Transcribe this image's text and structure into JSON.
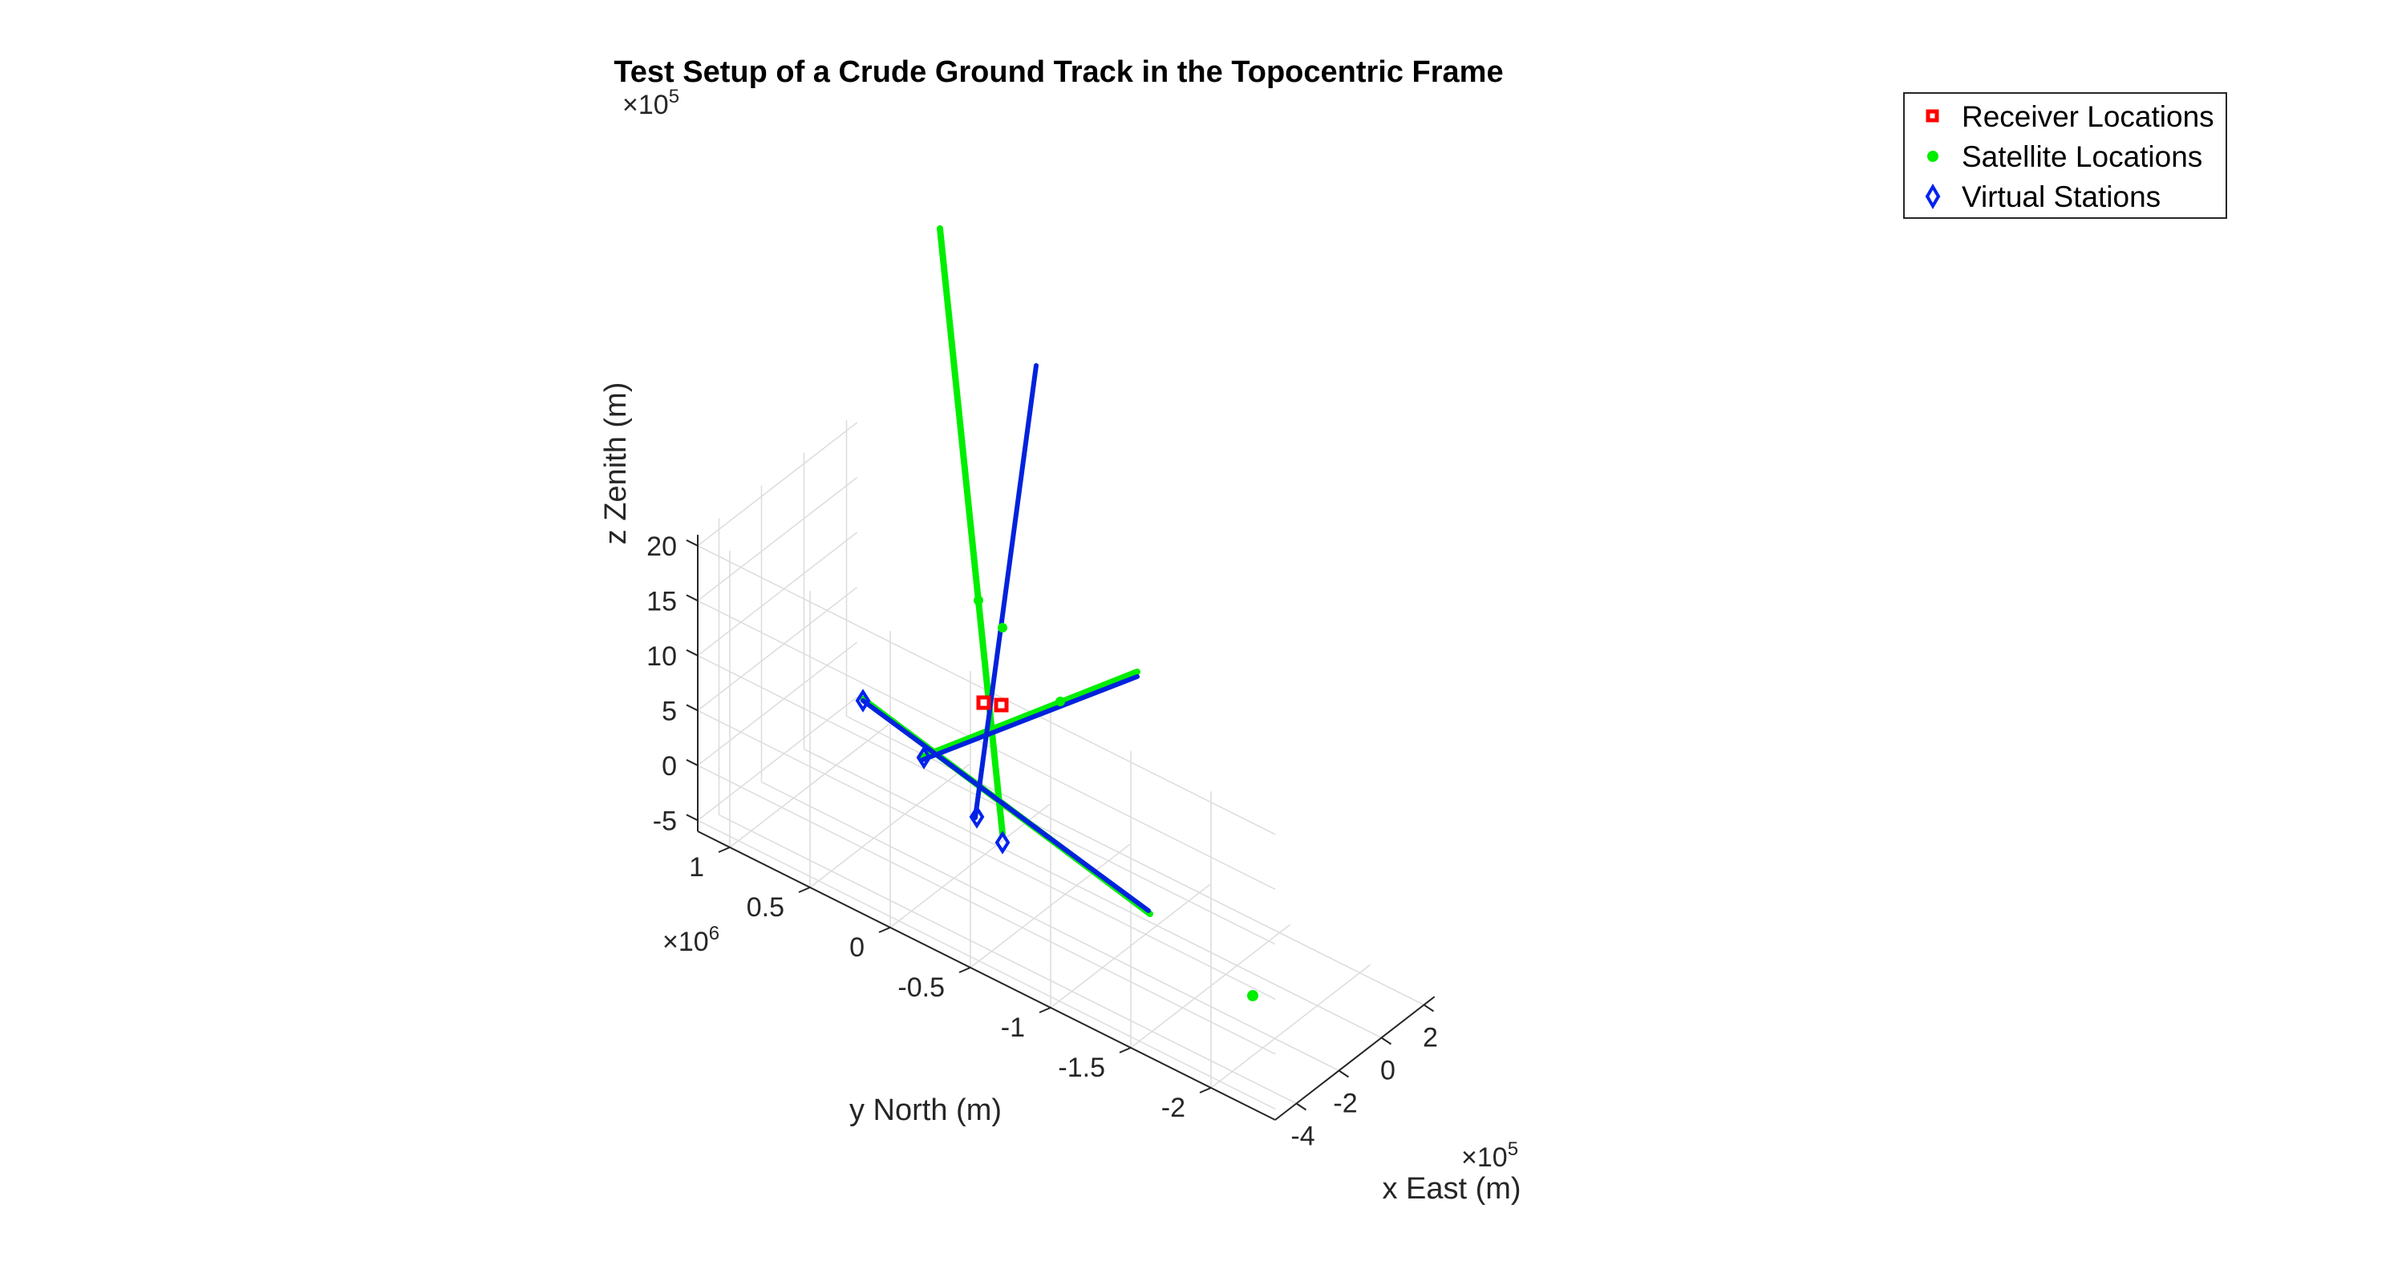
{
  "chart_data": {
    "type": "scatter3d",
    "title": "Test Setup of a Crude Ground Track in the Topocentric Frame",
    "xlabel": "x East (m)",
    "ylabel": "y North (m)",
    "zlabel": "z Zenith (m)",
    "x_multiplier": "×10",
    "x_multiplier_exp": "5",
    "y_multiplier": "×10",
    "y_multiplier_exp": "6",
    "z_multiplier": "×10",
    "z_multiplier_exp": "5",
    "x_ticks": [
      -4,
      -2,
      0,
      2
    ],
    "x_tick_labels": [
      "-4",
      "-2",
      "0",
      "2"
    ],
    "y_ticks": [
      1,
      0.5,
      0,
      -0.5,
      -1,
      -1.5,
      -2
    ],
    "y_tick_labels": [
      "1",
      "0.5",
      "0",
      "-0.5",
      "-1",
      "-1.5",
      "-2"
    ],
    "z_ticks": [
      20,
      15,
      10,
      5,
      0,
      -5
    ],
    "z_tick_labels": [
      "20",
      "15",
      "10",
      "5",
      "0",
      "-5"
    ],
    "grid": true,
    "box": true,
    "legend_position": "top-right",
    "legend": [
      {
        "label": "Receiver Locations",
        "marker": "square",
        "color": "#ff0000"
      },
      {
        "label": "Satellite Locations",
        "marker": "circle",
        "color": "#00ff00"
      },
      {
        "label": "Virtual Stations",
        "marker": "diamond",
        "color": "#0000ff"
      }
    ],
    "colors": {
      "receiver": "#ff0000",
      "satellite": "#00ff00",
      "virtual": "#0000ff",
      "track": "#0022dd",
      "grid": "#dcdcdc",
      "axis": "#262626"
    }
  }
}
